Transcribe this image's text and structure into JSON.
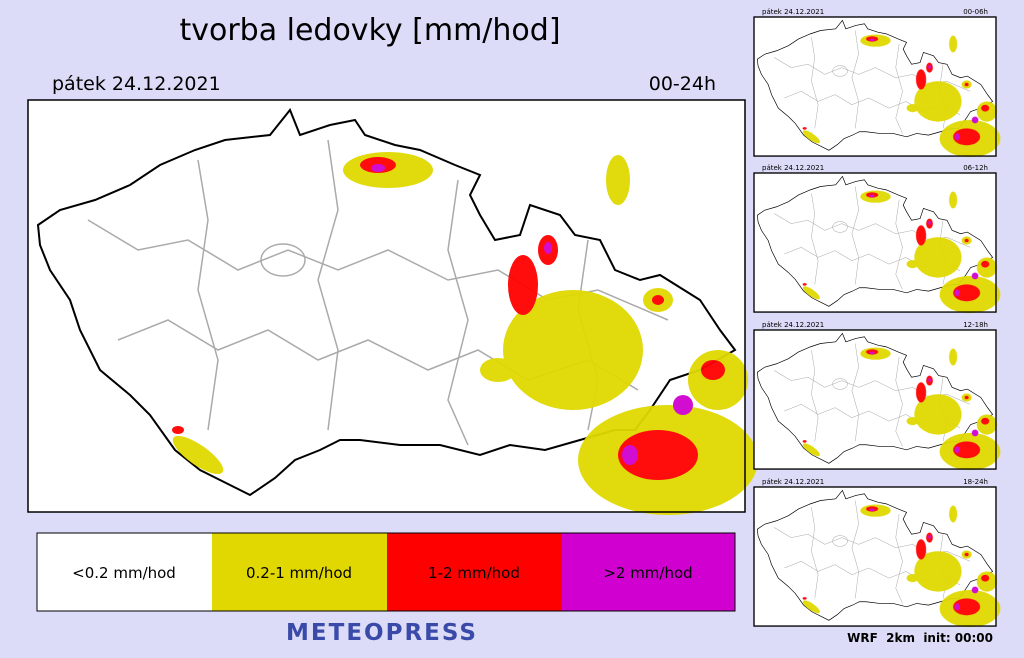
{
  "header": {
    "title": "tvorba ledovky [mm/hod]",
    "date": "pátek 24.12.2021",
    "period": "00-24h"
  },
  "legend": {
    "items": [
      "<0.2 mm/hod",
      "0.2-1 mm/hod",
      "1-2 mm/hod",
      ">2 mm/hod"
    ]
  },
  "brand": "METEOPRESS",
  "thumbnails": [
    {
      "date": "pátek 24.12.2021",
      "period": "00-06h"
    },
    {
      "date": "pátek 24.12.2021",
      "period": "06-12h"
    },
    {
      "date": "pátek 24.12.2021",
      "period": "12-18h"
    },
    {
      "date": "pátek 24.12.2021",
      "period": "18-24h"
    }
  ],
  "footer": "WRF  2km  init: 00:00"
}
